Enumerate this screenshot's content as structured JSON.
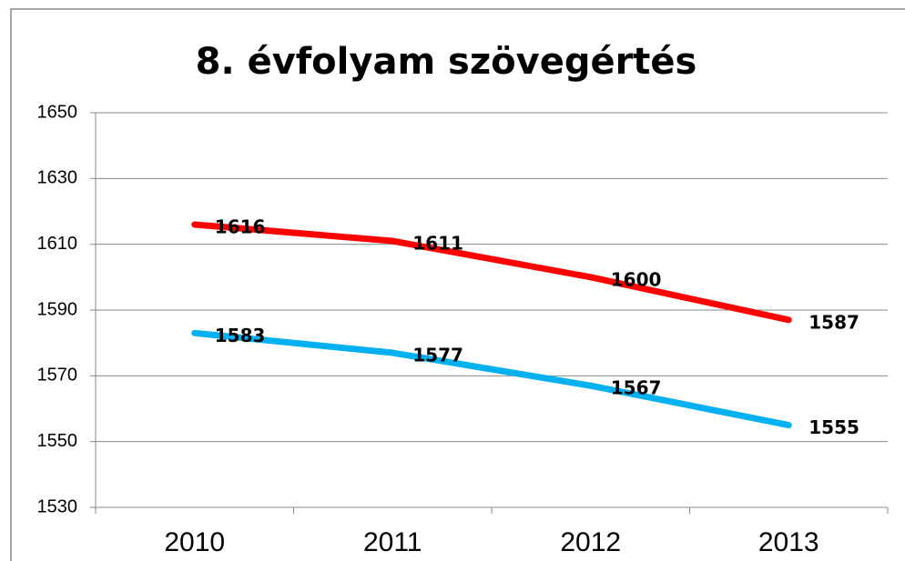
{
  "chart_data": {
    "type": "line",
    "title": "8. évfolyam szövegértés",
    "categories": [
      "2010",
      "2011",
      "2012",
      "2013"
    ],
    "series": [
      {
        "color": "#ff0000",
        "values": [
          1616,
          1611,
          1600,
          1587
        ]
      },
      {
        "color": "#00b0f0",
        "values": [
          1583,
          1577,
          1567,
          1555
        ]
      }
    ],
    "ylim": [
      1530,
      1650
    ],
    "yticks": [
      1530,
      1550,
      1570,
      1590,
      1610,
      1630,
      1650
    ],
    "grid": true
  }
}
